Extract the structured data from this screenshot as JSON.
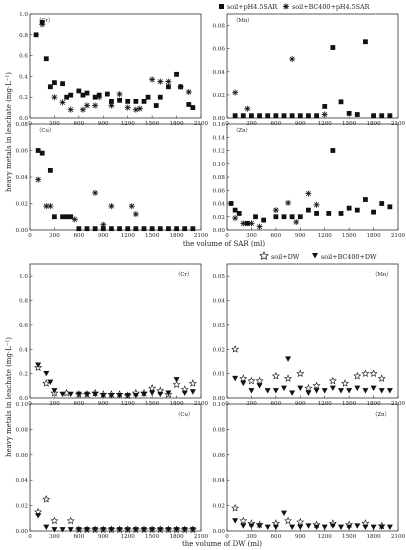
{
  "figure": {
    "top_y_label": "heavy metals in leachate (mg·L⁻¹)",
    "top_x_label": "the volume of SAR (ml)",
    "bottom_y_label": "heavy metals in leachate (mg·L⁻¹)",
    "bottom_x_label": "the volume of DW (ml)",
    "top_legend": [
      "soil+pH4.5SAR",
      "soil+BC400+pH4.5SAR"
    ],
    "bottom_legend": [
      "soil+DW",
      "soil+BC400+DW"
    ]
  },
  "chart_data": [
    {
      "type": "scatter",
      "panel_label": "（Cr）",
      "xlim": [
        0,
        2100
      ],
      "ylim": [
        0,
        1.0
      ],
      "xticks": [
        0,
        300,
        600,
        900,
        1200,
        1500,
        1800,
        2100
      ],
      "yticks": [
        0,
        0.2,
        0.4,
        0.6,
        0.8,
        1.0
      ],
      "series": [
        {
          "name": "soil+pH4.5SAR",
          "marker": "square",
          "x": [
            75,
            150,
            200,
            250,
            300,
            400,
            450,
            500,
            600,
            650,
            700,
            800,
            850,
            950,
            1000,
            1100,
            1200,
            1300,
            1400,
            1450,
            1550,
            1600,
            1700,
            1800,
            1850,
            1950,
            2000
          ],
          "y": [
            0.8,
            0.92,
            0.57,
            0.3,
            0.34,
            0.33,
            0.2,
            0.22,
            0.26,
            0.22,
            0.24,
            0.2,
            0.22,
            0.23,
            0.16,
            0.17,
            0.16,
            0.16,
            0.16,
            0.2,
            0.12,
            0.2,
            0.3,
            0.42,
            0.3,
            0.13,
            0.1
          ]
        },
        {
          "name": "soil+BC400+pH4.5SAR",
          "marker": "asterisk",
          "x": [
            150,
            300,
            400,
            500,
            650,
            700,
            800,
            850,
            1000,
            1100,
            1200,
            1300,
            1350,
            1500,
            1600,
            1700,
            1850,
            1950
          ],
          "y": [
            0.9,
            0.2,
            0.15,
            0.08,
            0.08,
            0.12,
            0.12,
            0.2,
            0.12,
            0.23,
            0.1,
            0.08,
            0.09,
            0.37,
            0.35,
            0.35,
            0.3,
            0.25
          ]
        }
      ]
    },
    {
      "type": "scatter",
      "panel_label": "（Mn）",
      "xlim": [
        0,
        2100
      ],
      "ylim": [
        0,
        0.09
      ],
      "xticks": [
        0,
        300,
        600,
        900,
        1200,
        1500,
        1800,
        2100
      ],
      "yticks": [
        0,
        0.02,
        0.04,
        0.06,
        0.08
      ],
      "series": [
        {
          "name": "soil+pH4.5SAR",
          "marker": "square",
          "x": [
            100,
            200,
            300,
            400,
            500,
            600,
            700,
            800,
            900,
            1000,
            1100,
            1200,
            1300,
            1400,
            1500,
            1600,
            1700,
            1800,
            1900,
            2000
          ],
          "y": [
            0.002,
            0.002,
            0.002,
            0.002,
            0.002,
            0.002,
            0.002,
            0.002,
            0.002,
            0.002,
            0.002,
            0.01,
            0.061,
            0.014,
            0.004,
            0.003,
            0.066,
            0.002,
            0.002,
            0.002
          ]
        },
        {
          "name": "soil+BC400+pH4.5SAR",
          "marker": "asterisk",
          "x": [
            100,
            250,
            800,
            1200
          ],
          "y": [
            0.022,
            0.008,
            0.051,
            0.003
          ]
        }
      ]
    },
    {
      "type": "scatter",
      "panel_label": "（Cu）",
      "xlim": [
        0,
        2100
      ],
      "ylim": [
        0,
        0.08
      ],
      "xticks": [
        0,
        300,
        600,
        900,
        1200,
        1500,
        1800,
        2100
      ],
      "yticks": [
        0,
        0.02,
        0.04,
        0.06,
        0.08
      ],
      "series": [
        {
          "name": "soil+pH4.5SAR",
          "marker": "square",
          "x": [
            100,
            150,
            250,
            300,
            400,
            450,
            500,
            600,
            700,
            800,
            900,
            1000,
            1100,
            1200,
            1300,
            1400,
            1500,
            1600,
            1700,
            1800,
            1900,
            2000
          ],
          "y": [
            0.06,
            0.058,
            0.045,
            0.01,
            0.01,
            0.01,
            0.01,
            0.001,
            0.001,
            0.001,
            0.001,
            0.001,
            0.001,
            0.001,
            0.001,
            0.001,
            0.001,
            0.001,
            0.001,
            0.001,
            0.001,
            0.001
          ]
        },
        {
          "name": "soil+BC400+pH4.5SAR",
          "marker": "asterisk",
          "x": [
            100,
            200,
            250,
            550,
            800,
            900,
            1000,
            1250,
            1300
          ],
          "y": [
            0.038,
            0.018,
            0.018,
            0.008,
            0.028,
            0.004,
            0.018,
            0.018,
            0.012
          ]
        }
      ]
    },
    {
      "type": "scatter",
      "panel_label": "（Zn）",
      "xlim": [
        0,
        2100
      ],
      "ylim": [
        0,
        0.16
      ],
      "xticks": [
        0,
        300,
        600,
        900,
        1200,
        1500,
        1800,
        2100
      ],
      "yticks": [
        0,
        0.02,
        0.04,
        0.06,
        0.08,
        0.1,
        0.12,
        0.14,
        0.16
      ],
      "series": [
        {
          "name": "soil+pH4.5SAR",
          "marker": "square",
          "x": [
            50,
            100,
            150,
            250,
            350,
            450,
            600,
            700,
            800,
            900,
            1000,
            1100,
            1250,
            1300,
            1400,
            1500,
            1600,
            1700,
            1800,
            1900,
            2000
          ],
          "y": [
            0.04,
            0.03,
            0.025,
            0.01,
            0.02,
            0.015,
            0.02,
            0.02,
            0.02,
            0.02,
            0.03,
            0.025,
            0.025,
            0.12,
            0.025,
            0.033,
            0.03,
            0.046,
            0.027,
            0.04,
            0.035
          ]
        },
        {
          "name": "soil+BC400+pH4.5SAR",
          "marker": "asterisk",
          "x": [
            100,
            200,
            300,
            400,
            600,
            750,
            850,
            1000,
            1100
          ],
          "y": [
            0.018,
            0.01,
            0.01,
            0.005,
            0.03,
            0.041,
            0.012,
            0.055,
            0.038
          ]
        }
      ]
    },
    {
      "type": "scatter",
      "panel_label": "（Cr）",
      "xlim": [
        0,
        2100
      ],
      "ylim": [
        0,
        1.1
      ],
      "xticks": [
        0,
        300,
        600,
        900,
        1200,
        1500,
        1800,
        2100
      ],
      "yticks": [
        0,
        0.2,
        0.4,
        0.6,
        0.8,
        1.0
      ],
      "series": [
        {
          "name": "soil+DW",
          "marker": "star",
          "x": [
            100,
            200,
            300,
            450,
            600,
            700,
            800,
            900,
            1000,
            1100,
            1200,
            1300,
            1400,
            1500,
            1600,
            1700,
            1800,
            1900,
            2000
          ],
          "y": [
            0.25,
            0.12,
            0.04,
            0.04,
            0.03,
            0.03,
            0.04,
            0.03,
            0.03,
            0.03,
            0.02,
            0.04,
            0.04,
            0.08,
            0.06,
            0.03,
            0.11,
            0.07,
            0.12
          ]
        },
        {
          "name": "soil+BC400+DW",
          "marker": "down-triangle",
          "x": [
            100,
            200,
            250,
            300,
            400,
            500,
            600,
            700,
            800,
            900,
            1000,
            1100,
            1200,
            1300,
            1400,
            1500,
            1600,
            1700,
            1800,
            1900,
            2000
          ],
          "y": [
            0.27,
            0.2,
            0.13,
            0.06,
            0.03,
            0.03,
            0.03,
            0.03,
            0.03,
            0.02,
            0.02,
            0.02,
            0.02,
            0.02,
            0.03,
            0.04,
            0.03,
            0.04,
            0.15,
            0.04,
            0.05
          ]
        }
      ]
    },
    {
      "type": "scatter",
      "panel_label": "（Mn）",
      "xlim": [
        0,
        2100
      ],
      "ylim": [
        0,
        0.055
      ],
      "xticks": [
        0,
        300,
        600,
        900,
        1200,
        1500,
        1800,
        2100
      ],
      "yticks": [
        0,
        0.01,
        0.02,
        0.03,
        0.04,
        0.05
      ],
      "series": [
        {
          "name": "soil+DW",
          "marker": "star",
          "x": [
            100,
            200,
            300,
            400,
            600,
            750,
            900,
            1000,
            1100,
            1300,
            1450,
            1600,
            1700,
            1800,
            1900
          ],
          "y": [
            0.02,
            0.008,
            0.007,
            0.007,
            0.009,
            0.008,
            0.01,
            0.004,
            0.005,
            0.007,
            0.006,
            0.009,
            0.01,
            0.01,
            0.008
          ]
        },
        {
          "name": "soil+BC400+DW",
          "marker": "down-triangle",
          "x": [
            100,
            200,
            300,
            400,
            500,
            600,
            700,
            750,
            800,
            900,
            1000,
            1100,
            1200,
            1300,
            1400,
            1500,
            1600,
            1700,
            1800,
            1900,
            2000
          ],
          "y": [
            0.008,
            0.006,
            0.003,
            0.005,
            0.003,
            0.003,
            0.004,
            0.016,
            0.002,
            0.004,
            0.002,
            0.003,
            0.003,
            0.004,
            0.003,
            0.003,
            0.004,
            0.003,
            0.004,
            0.003,
            0.003
          ]
        }
      ]
    },
    {
      "type": "scatter",
      "panel_label": "（Cu）",
      "xlim": [
        0,
        2100
      ],
      "ylim": [
        0,
        0.1
      ],
      "xticks": [
        0,
        300,
        600,
        900,
        1200,
        1500,
        1800,
        2100
      ],
      "yticks": [
        0,
        0.02,
        0.04,
        0.06,
        0.08,
        0.1
      ],
      "series": [
        {
          "name": "soil+DW",
          "marker": "star",
          "x": [
            100,
            200,
            300,
            500,
            600,
            700,
            800,
            900,
            1000,
            1100,
            1200,
            1300,
            1400,
            1500,
            1600,
            1700,
            1800,
            1900,
            2000
          ],
          "y": [
            0.015,
            0.025,
            0.008,
            0.008,
            0.001,
            0.001,
            0.001,
            0.001,
            0.001,
            0.001,
            0.001,
            0.001,
            0.001,
            0.001,
            0.001,
            0.001,
            0.001,
            0.001,
            0.001
          ]
        },
        {
          "name": "soil+BC400+DW",
          "marker": "down-triangle",
          "x": [
            100,
            200,
            300,
            400,
            500,
            600,
            700,
            800,
            900,
            1000,
            1100,
            1200,
            1300,
            1400,
            1500,
            1600,
            1700,
            1800,
            1900,
            2000
          ],
          "y": [
            0.012,
            0.003,
            0.001,
            0.001,
            0.001,
            0.001,
            0.001,
            0.001,
            0.001,
            0.001,
            0.001,
            0.001,
            0.001,
            0.001,
            0.001,
            0.001,
            0.001,
            0.001,
            0.001,
            0.001
          ]
        }
      ]
    },
    {
      "type": "scatter",
      "panel_label": "（Zn）",
      "xlim": [
        0,
        2100
      ],
      "ylim": [
        0,
        0.1
      ],
      "xticks": [
        0,
        300,
        600,
        900,
        1200,
        1500,
        1800,
        2100
      ],
      "yticks": [
        0,
        0.02,
        0.04,
        0.06,
        0.08,
        0.1
      ],
      "series": [
        {
          "name": "soil+DW",
          "marker": "star",
          "x": [
            100,
            200,
            300,
            400,
            600,
            750,
            900,
            1100,
            1300,
            1500,
            1700,
            1900
          ],
          "y": [
            0.018,
            0.008,
            0.006,
            0.005,
            0.006,
            0.008,
            0.007,
            0.005,
            0.006,
            0.005,
            0.006,
            0.004
          ]
        },
        {
          "name": "soil+BC400+DW",
          "marker": "down-triangle",
          "x": [
            100,
            200,
            300,
            400,
            500,
            600,
            700,
            800,
            900,
            1000,
            1100,
            1200,
            1300,
            1400,
            1500,
            1600,
            1700,
            1800,
            1900,
            2000
          ],
          "y": [
            0.008,
            0.004,
            0.004,
            0.004,
            0.003,
            0.003,
            0.014,
            0.003,
            0.003,
            0.004,
            0.003,
            0.003,
            0.004,
            0.003,
            0.003,
            0.004,
            0.003,
            0.003,
            0.003,
            0.003
          ]
        }
      ]
    }
  ]
}
